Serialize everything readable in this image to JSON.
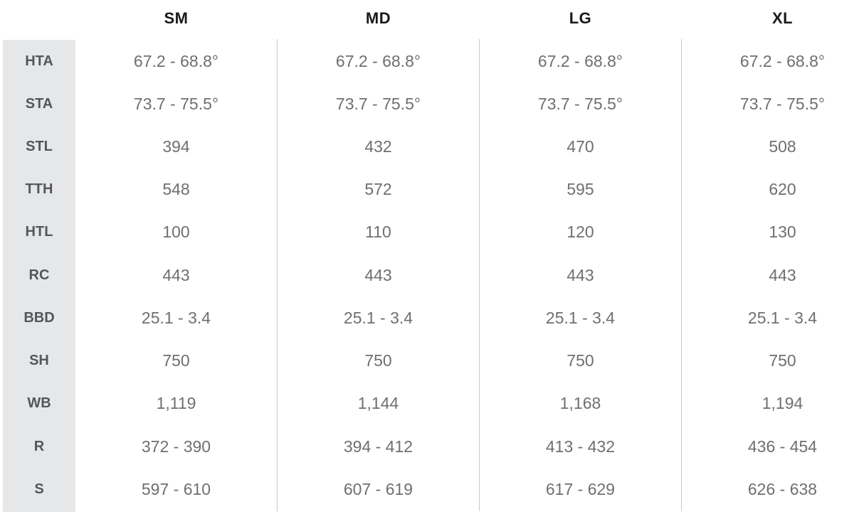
{
  "table": {
    "columns": [
      "SM",
      "MD",
      "LG",
      "XL"
    ],
    "rows": [
      {
        "label": "HTA",
        "values": [
          "67.2 - 68.8°",
          "67.2 - 68.8°",
          "67.2 - 68.8°",
          "67.2 - 68.8°"
        ]
      },
      {
        "label": "STA",
        "values": [
          "73.7 - 75.5°",
          "73.7 - 75.5°",
          "73.7 - 75.5°",
          "73.7 - 75.5°"
        ]
      },
      {
        "label": "STL",
        "values": [
          "394",
          "432",
          "470",
          "508"
        ]
      },
      {
        "label": "TTH",
        "values": [
          "548",
          "572",
          "595",
          "620"
        ]
      },
      {
        "label": "HTL",
        "values": [
          "100",
          "110",
          "120",
          "130"
        ]
      },
      {
        "label": "RC",
        "values": [
          "443",
          "443",
          "443",
          "443"
        ]
      },
      {
        "label": "BBD",
        "values": [
          "25.1 - 3.4",
          "25.1 - 3.4",
          "25.1 - 3.4",
          "25.1 - 3.4"
        ]
      },
      {
        "label": "SH",
        "values": [
          "750",
          "750",
          "750",
          "750"
        ]
      },
      {
        "label": "WB",
        "values": [
          "1,119",
          "1,144",
          "1,168",
          "1,194"
        ]
      },
      {
        "label": "R",
        "values": [
          "372 - 390",
          "394 - 412",
          "413 - 432",
          "436 - 454"
        ]
      },
      {
        "label": "S",
        "values": [
          "597 - 610",
          "607 - 619",
          "617 - 629",
          "626 - 638"
        ]
      }
    ]
  }
}
